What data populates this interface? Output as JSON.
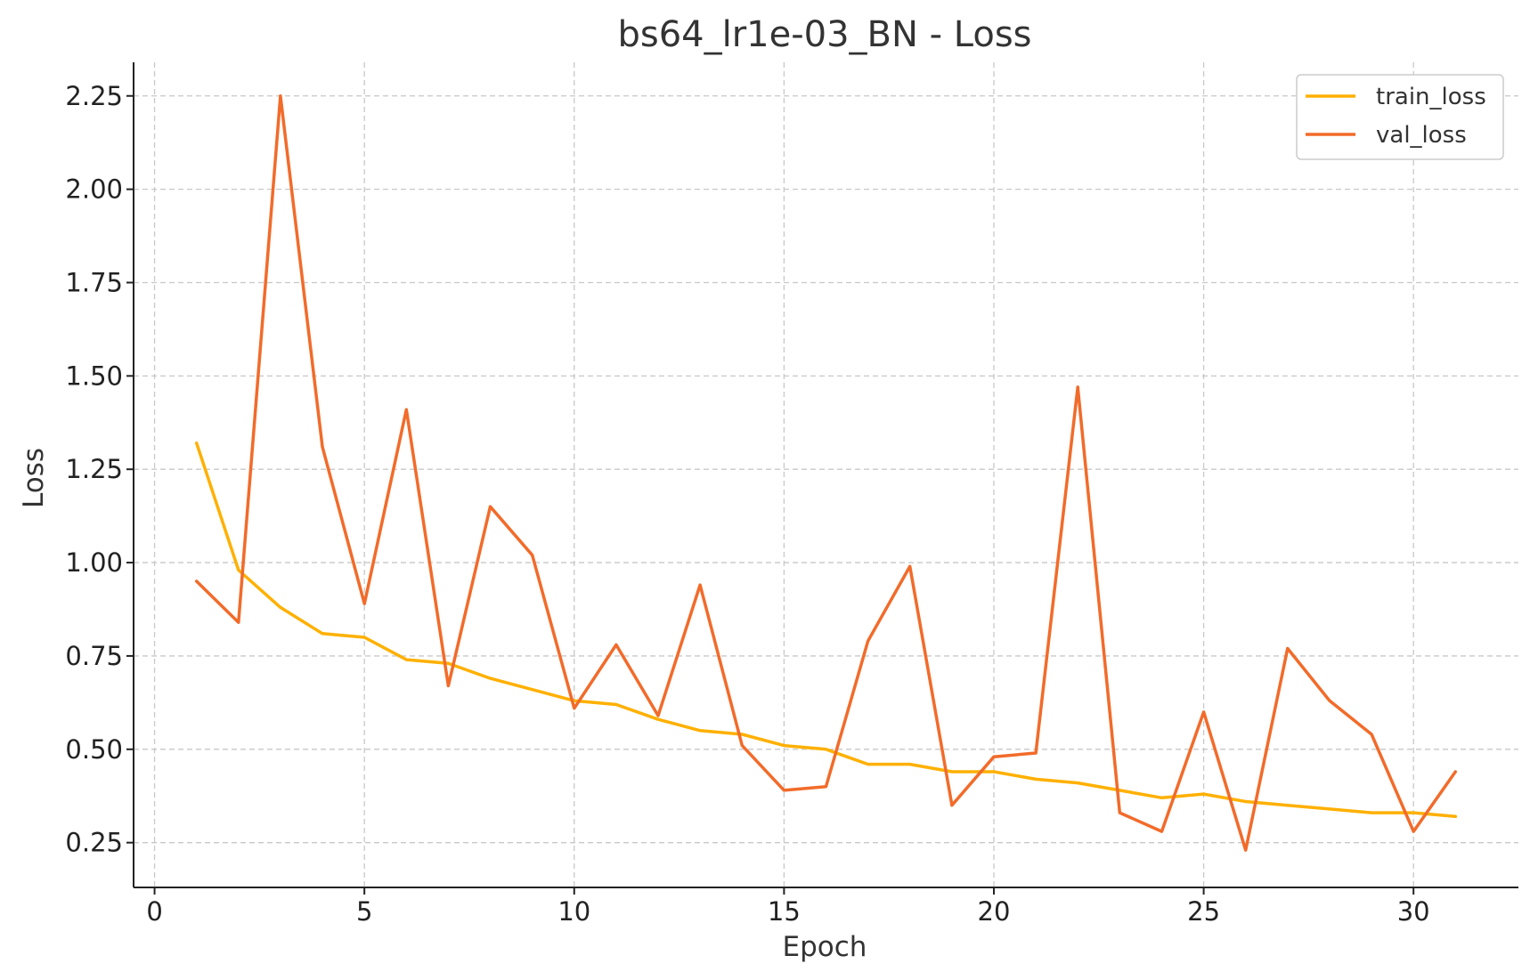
{
  "chart_data": {
    "type": "line",
    "title": "bs64_lr1e-03_BN - Loss",
    "xlabel": "Epoch",
    "ylabel": "Loss",
    "xlim": [
      -0.5,
      32.5
    ],
    "ylim": [
      0.13,
      2.34
    ],
    "xticks": [
      0,
      5,
      10,
      15,
      20,
      25,
      30
    ],
    "yticks": [
      0.25,
      0.5,
      0.75,
      1.0,
      1.25,
      1.5,
      1.75,
      2.0,
      2.25
    ],
    "ytick_labels": [
      "0.25",
      "0.50",
      "0.75",
      "1.00",
      "1.25",
      "1.50",
      "1.75",
      "2.00",
      "2.25"
    ],
    "grid": true,
    "legend_position": "top-right",
    "x": [
      1,
      2,
      3,
      4,
      5,
      6,
      7,
      8,
      9,
      10,
      11,
      12,
      13,
      14,
      15,
      16,
      17,
      18,
      19,
      20,
      21,
      22,
      23,
      24,
      25,
      26,
      27,
      28,
      29,
      30,
      31
    ],
    "series": [
      {
        "name": "train_loss",
        "color": "#FFB000",
        "values": [
          1.32,
          0.98,
          0.88,
          0.81,
          0.8,
          0.74,
          0.73,
          0.69,
          0.66,
          0.63,
          0.62,
          0.58,
          0.55,
          0.54,
          0.51,
          0.5,
          0.46,
          0.46,
          0.44,
          0.44,
          0.42,
          0.41,
          0.39,
          0.37,
          0.38,
          0.36,
          0.35,
          0.34,
          0.33,
          0.33,
          0.32
        ]
      },
      {
        "name": "val_loss",
        "color": "#F26B2A",
        "values": [
          0.95,
          0.84,
          2.25,
          1.31,
          0.89,
          1.41,
          0.67,
          1.15,
          1.02,
          0.61,
          0.78,
          0.59,
          0.94,
          0.51,
          0.39,
          0.4,
          0.79,
          0.99,
          0.35,
          0.48,
          0.49,
          1.47,
          0.33,
          0.28,
          0.6,
          0.23,
          0.77,
          0.63,
          0.54,
          0.28,
          0.44
        ]
      }
    ]
  }
}
